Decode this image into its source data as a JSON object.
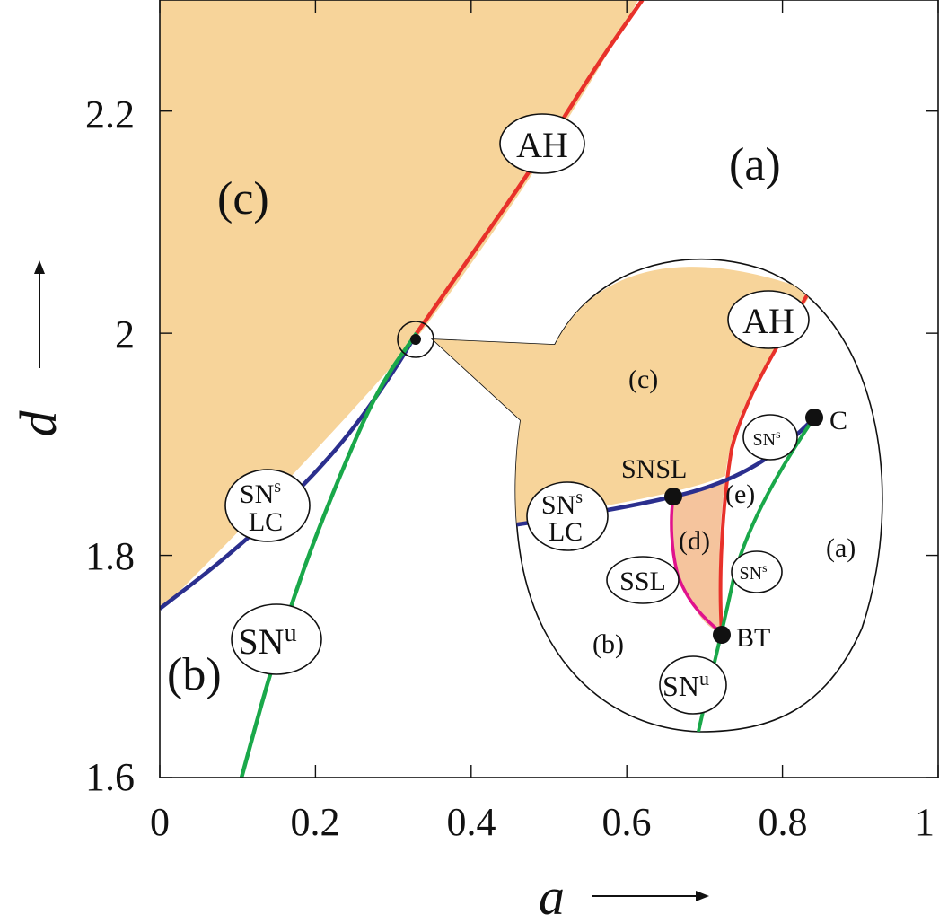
{
  "chart_data": {
    "type": "line",
    "title": "",
    "xlabel": "a",
    "ylabel": "d",
    "xlim": [
      0,
      1
    ],
    "ylim": [
      1.6,
      2.3
    ],
    "x_ticks": [
      "0",
      "0.2",
      "0.4",
      "0.6",
      "0.8",
      "1"
    ],
    "y_ticks": [
      "1.6",
      "1.8",
      "2",
      "2.2"
    ],
    "grid": false,
    "series": [
      {
        "name": "AH",
        "color": "#e8312a",
        "x": [
          0.33,
          0.4,
          0.48,
          0.56,
          0.62
        ],
        "y": [
          2.0,
          2.07,
          2.15,
          2.24,
          2.3
        ]
      },
      {
        "name": "SN^s_LC",
        "color": "#2b2f8e",
        "x": [
          0.0,
          0.08,
          0.16,
          0.24,
          0.3,
          0.33
        ],
        "y": [
          1.752,
          1.795,
          1.845,
          1.905,
          1.965,
          2.0
        ]
      },
      {
        "name": "SN^u",
        "color": "#1aa84a",
        "x": [
          0.105,
          0.14,
          0.18,
          0.23,
          0.28,
          0.33
        ],
        "y": [
          1.6,
          1.69,
          1.78,
          1.87,
          1.95,
          2.0
        ]
      }
    ],
    "region_labels": [
      "(a)",
      "(b)",
      "(c)"
    ],
    "curve_labels": {
      "ah": "AH",
      "sn_lc_main": "SN",
      "sn_lc_sup": "s",
      "sn_lc_sub": "LC",
      "snu_main": "SN",
      "snu_sup": "u"
    },
    "inset": {
      "region_labels": [
        "(a)",
        "(b)",
        "(c)",
        "(d)",
        "(e)"
      ],
      "point_labels": [
        "SNSL",
        "C",
        "BT"
      ],
      "curve_labels": {
        "ah": "AH",
        "ssl": "SSL",
        "sn_lc_main": "SN",
        "sn_lc_sup": "s",
        "sn_lc_sub": "LC",
        "sns_main": "SN",
        "sns_sup": "s",
        "snu_main": "SN",
        "snu_sup": "u"
      }
    },
    "colors": {
      "ah": "#e8312a",
      "sn_lc": "#2b2f8e",
      "sn_u": "#1aa84a",
      "ssl": "#e0128c",
      "fill_c": "#f7d49a",
      "fill_d": "#f5c49d"
    }
  }
}
